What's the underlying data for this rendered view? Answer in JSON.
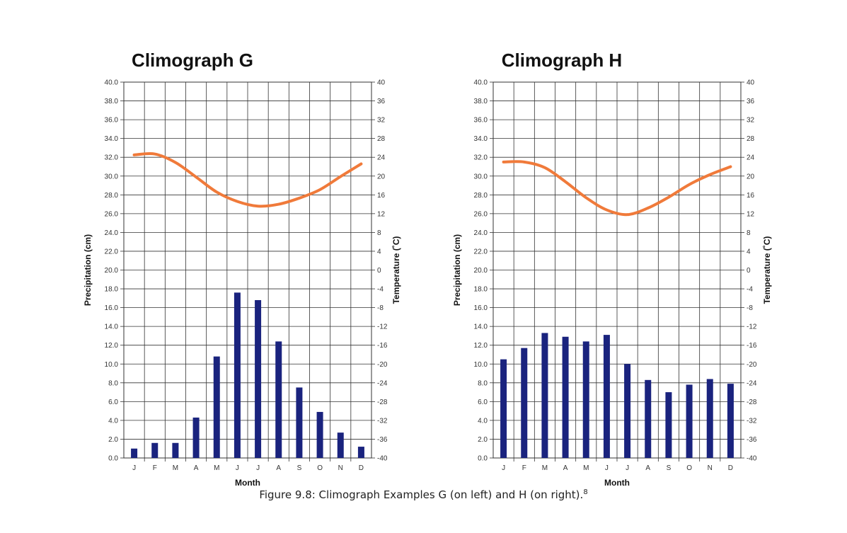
{
  "caption": {
    "text": "Figure 9.8: Climograph Examples G (on left) and H (on right).",
    "footnote": "8"
  },
  "colors": {
    "bar": "#1a237e",
    "temperature_line": "#f07a3a",
    "grid": "#333333",
    "text": "#111111"
  },
  "chart_data": [
    {
      "id": "G",
      "type": "bar+line",
      "title": "Climograph G",
      "xlabel": "Month",
      "ylabel": "Precipitation (cm)",
      "y2label": "Temperature (˚C)",
      "categories": [
        "J",
        "F",
        "M",
        "A",
        "M",
        "J",
        "J",
        "A",
        "S",
        "O",
        "N",
        "D"
      ],
      "ylim": [
        0,
        40
      ],
      "y2lim": [
        -40,
        40
      ],
      "yticks": [
        "0.0",
        "2.0",
        "4.0",
        "6.0",
        "8.0",
        "10.0",
        "12.0",
        "14.0",
        "16.0",
        "18.0",
        "20.0",
        "22.0",
        "24.0",
        "26.0",
        "28.0",
        "30.0",
        "32.0",
        "34.0",
        "36.0",
        "38.0",
        "40.0"
      ],
      "y2ticks": [
        "-40",
        "-36",
        "-32",
        "-28",
        "-24",
        "-20",
        "-16",
        "-12",
        "-8",
        "-4",
        "0",
        "4",
        "8",
        "12",
        "16",
        "20",
        "24",
        "28",
        "32",
        "36",
        "40"
      ],
      "series": [
        {
          "name": "Precipitation",
          "type": "bar",
          "axis": "left",
          "values": [
            1.0,
            1.6,
            1.6,
            4.3,
            10.8,
            17.6,
            16.8,
            12.4,
            7.5,
            4.9,
            2.7,
            1.2
          ]
        },
        {
          "name": "Temperature",
          "type": "line",
          "axis": "right",
          "values": [
            24.5,
            24.7,
            22.9,
            19.8,
            16.6,
            14.6,
            13.6,
            14.0,
            15.3,
            17.1,
            19.9,
            22.6
          ]
        }
      ]
    },
    {
      "id": "H",
      "type": "bar+line",
      "title": "Climograph H",
      "xlabel": "Month",
      "ylabel": "Precipitation (cm)",
      "y2label": "Temperature (˚C)",
      "categories": [
        "J",
        "F",
        "M",
        "A",
        "M",
        "J",
        "J",
        "A",
        "S",
        "O",
        "N",
        "D"
      ],
      "ylim": [
        0,
        40
      ],
      "y2lim": [
        -40,
        40
      ],
      "yticks": [
        "0.0",
        "2.0",
        "4.0",
        "6.0",
        "8.0",
        "10.0",
        "12.0",
        "14.0",
        "16.0",
        "18.0",
        "20.0",
        "22.0",
        "24.0",
        "26.0",
        "28.0",
        "30.0",
        "32.0",
        "34.0",
        "36.0",
        "38.0",
        "40.0"
      ],
      "y2ticks": [
        "-40",
        "-36",
        "-32",
        "-28",
        "-24",
        "-20",
        "-16",
        "-12",
        "-8",
        "-4",
        "0",
        "4",
        "8",
        "12",
        "16",
        "20",
        "24",
        "28",
        "32",
        "36",
        "40"
      ],
      "series": [
        {
          "name": "Precipitation",
          "type": "bar",
          "axis": "left",
          "values": [
            10.5,
            11.7,
            13.3,
            12.9,
            12.4,
            13.1,
            10.0,
            8.3,
            7.0,
            7.8,
            8.4,
            7.9
          ]
        },
        {
          "name": "Temperature",
          "type": "line",
          "axis": "right",
          "values": [
            23.0,
            23.0,
            21.8,
            18.8,
            15.4,
            12.8,
            11.8,
            13.2,
            15.5,
            18.2,
            20.3,
            22.0
          ]
        }
      ]
    }
  ]
}
